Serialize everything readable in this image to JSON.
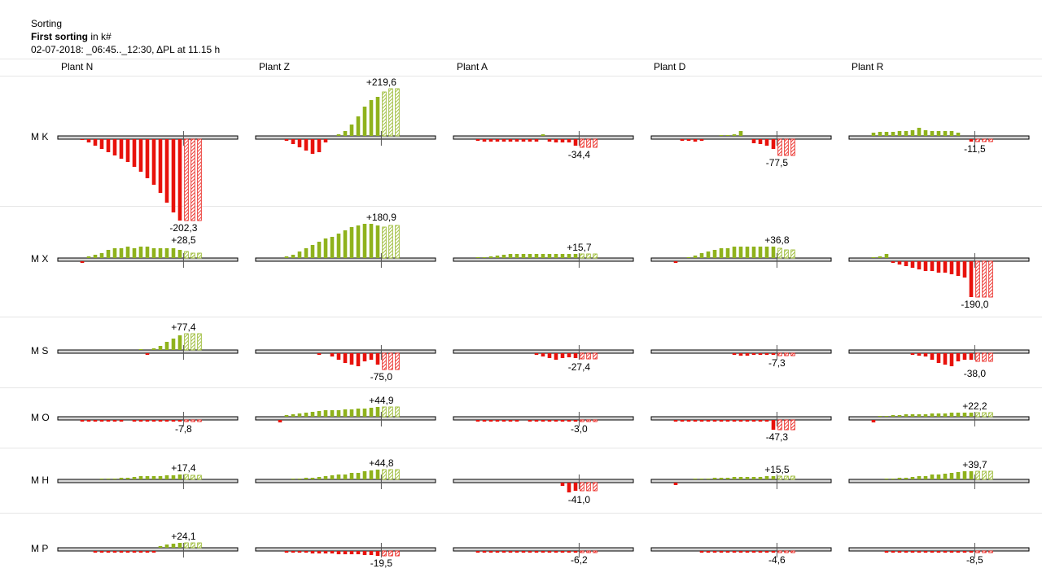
{
  "header": {
    "title": "Sorting",
    "subtitle_bold": "First sorting",
    "subtitle_unit": " in k#",
    "period": "02-07-2018:  _06:45.._12:30,  ΔPL at 11.15 h"
  },
  "colors": {
    "positive": "#8fb21c",
    "negative": "#e8120c",
    "axis_fill": "#d6d6d6",
    "grid": "#e6e6e6"
  },
  "chart_data": {
    "type": "bar",
    "title": "First sorting",
    "columns": [
      "Plant N",
      "Plant Z",
      "Plant A",
      "Plant D",
      "Plant R"
    ],
    "rows": [
      "M K",
      "M X",
      "M S",
      "M O",
      "M H",
      "M P"
    ],
    "marker_time": "11.15 h",
    "note": "Each cell: 17 solid bars (actual) followed by 3 hatched bars (projection); label shows projected value in k#.",
    "cells": [
      [
        {
          "label": "-202,3",
          "values": [
            0,
            -1,
            -4,
            -8,
            -12,
            -16,
            -20,
            -24,
            -28,
            -34,
            -40,
            -48,
            -56,
            -66,
            -78,
            -90,
            -100,
            -100,
            -100,
            -100
          ]
        },
        {
          "label": "+219,6",
          "values": [
            0,
            0,
            -2,
            -6,
            -10,
            -14,
            -18,
            -16,
            -4,
            0,
            2,
            6,
            14,
            24,
            36,
            44,
            48,
            54,
            58,
            58
          ]
        },
        {
          "label": "-34,4",
          "values": [
            0,
            -2,
            -3,
            -3,
            -3,
            -3,
            -3,
            -3,
            -3,
            -3,
            -3,
            2,
            -3,
            -4,
            -4,
            -4,
            -8,
            -10,
            -10,
            -10
          ]
        },
        {
          "label": "-77,5",
          "values": [
            0,
            0,
            -2,
            -2,
            -3,
            -2,
            0,
            0,
            1,
            1,
            2,
            6,
            0,
            -5,
            -6,
            -8,
            -12,
            -20,
            -20,
            -20
          ]
        },
        {
          "label": "-11,5",
          "values": [
            0,
            4,
            5,
            5,
            5,
            6,
            6,
            7,
            10,
            7,
            6,
            6,
            6,
            6,
            4,
            0,
            -3,
            -3,
            -3,
            -3
          ]
        }
      ],
      [
        {
          "label": "+28,5",
          "values": [
            0,
            -2,
            2,
            4,
            6,
            10,
            12,
            12,
            14,
            12,
            14,
            14,
            12,
            12,
            12,
            12,
            10,
            8,
            6,
            6
          ]
        },
        {
          "label": "+180,9",
          "values": [
            0,
            0,
            2,
            4,
            8,
            12,
            16,
            20,
            24,
            26,
            30,
            34,
            38,
            40,
            42,
            42,
            40,
            38,
            40,
            40
          ]
        },
        {
          "label": "+15,7",
          "values": [
            0,
            1,
            1,
            2,
            3,
            4,
            5,
            5,
            5,
            5,
            5,
            5,
            5,
            5,
            5,
            5,
            5,
            5,
            5,
            5
          ]
        },
        {
          "label": "+36,8",
          "values": [
            0,
            -2,
            0,
            1,
            3,
            6,
            8,
            10,
            12,
            12,
            14,
            14,
            14,
            14,
            14,
            14,
            14,
            12,
            10,
            10
          ]
        },
        {
          "label": "-190,0",
          "values": [
            0,
            1,
            2,
            5,
            -2,
            -4,
            -6,
            -8,
            -10,
            -12,
            -12,
            -14,
            -14,
            -16,
            -18,
            -20,
            -44,
            -44,
            -44,
            -44
          ]
        }
      ],
      [
        {
          "label": "+77,4",
          "values": [
            0,
            0,
            0,
            0,
            0,
            0,
            0,
            0,
            0,
            0,
            1,
            -2,
            2,
            5,
            10,
            14,
            18,
            20,
            20,
            20
          ]
        },
        {
          "label": "-75,0",
          "values": [
            0,
            0,
            0,
            0,
            0,
            0,
            0,
            -2,
            0,
            -4,
            -8,
            -12,
            -14,
            -16,
            -10,
            -8,
            -14,
            -20,
            -20,
            -20
          ]
        },
        {
          "label": "-27,4",
          "values": [
            0,
            0,
            0,
            0,
            0,
            0,
            0,
            0,
            0,
            0,
            -2,
            -4,
            -6,
            -8,
            -6,
            -5,
            -6,
            -7,
            -7,
            -7
          ]
        },
        {
          "label": "-7,3",
          "values": [
            0,
            0,
            0,
            0,
            0,
            0,
            0,
            0,
            0,
            0,
            -2,
            -3,
            -3,
            -2,
            -2,
            -2,
            -2,
            -3,
            -3,
            -3
          ]
        },
        {
          "label": "-38,0",
          "values": [
            0,
            0,
            0,
            0,
            0,
            0,
            0,
            -2,
            -3,
            -4,
            -8,
            -12,
            -14,
            -16,
            -10,
            -8,
            -8,
            -10,
            -10,
            -10
          ]
        }
      ],
      [
        {
          "label": "-7,8",
          "values": [
            0,
            -2,
            -2,
            -2,
            -2,
            -2,
            -2,
            -2,
            0,
            -2,
            -2,
            -2,
            -2,
            -2,
            -2,
            -2,
            -2,
            -2,
            -2,
            -2
          ]
        },
        {
          "label": "+44,9",
          "values": [
            0,
            -3,
            2,
            3,
            4,
            5,
            6,
            7,
            8,
            8,
            8,
            9,
            9,
            10,
            10,
            11,
            12,
            12,
            12,
            12
          ]
        },
        {
          "label": "-3,0",
          "values": [
            0,
            -2,
            -2,
            -2,
            -2,
            -2,
            -2,
            -2,
            0,
            -2,
            -2,
            -2,
            -2,
            -2,
            -2,
            -2,
            -2,
            -2,
            -2,
            -2
          ]
        },
        {
          "label": "-47,3",
          "values": [
            0,
            -2,
            -2,
            -2,
            -2,
            -2,
            -2,
            -2,
            -2,
            -2,
            -2,
            -2,
            -2,
            -2,
            -2,
            -2,
            -12,
            -12,
            -12,
            -12
          ]
        },
        {
          "label": "+22,2",
          "values": [
            0,
            -3,
            1,
            1,
            2,
            2,
            3,
            3,
            3,
            3,
            4,
            4,
            4,
            5,
            5,
            5,
            5,
            5,
            5,
            5
          ]
        }
      ],
      [
        {
          "label": "+17,4",
          "values": [
            0,
            0,
            0,
            0,
            1,
            1,
            1,
            2,
            2,
            3,
            4,
            4,
            4,
            4,
            5,
            5,
            6,
            6,
            5,
            5
          ]
        },
        {
          "label": "+44,8",
          "values": [
            0,
            0,
            0,
            1,
            1,
            2,
            2,
            3,
            4,
            5,
            6,
            6,
            8,
            8,
            10,
            11,
            12,
            12,
            12,
            12
          ]
        },
        {
          "label": "-41,0",
          "values": [
            0,
            0,
            0,
            0,
            0,
            0,
            0,
            0,
            0,
            0,
            0,
            0,
            0,
            0,
            -4,
            -12,
            -10,
            -10,
            -10,
            -10
          ]
        },
        {
          "label": "+15,5",
          "values": [
            0,
            -3,
            0,
            0,
            1,
            1,
            1,
            2,
            2,
            2,
            3,
            3,
            3,
            3,
            3,
            4,
            4,
            4,
            4,
            4
          ]
        },
        {
          "label": "+39,7",
          "values": [
            0,
            0,
            0,
            1,
            1,
            2,
            2,
            3,
            4,
            4,
            6,
            6,
            7,
            8,
            9,
            10,
            10,
            10,
            10,
            10
          ]
        }
      ],
      [
        {
          "label": "+24,1",
          "values": [
            0,
            0,
            0,
            -2,
            -2,
            -2,
            -2,
            -2,
            -2,
            -2,
            -2,
            -2,
            -2,
            2,
            4,
            5,
            6,
            6,
            6,
            6
          ]
        },
        {
          "label": "-19,5",
          "values": [
            0,
            0,
            -2,
            -2,
            -2,
            -2,
            -3,
            -3,
            -3,
            -3,
            -4,
            -4,
            -4,
            -4,
            -5,
            -5,
            -6,
            -6,
            -6,
            -6
          ]
        },
        {
          "label": "-6,2",
          "values": [
            0,
            -2,
            -2,
            -2,
            -2,
            -2,
            -2,
            -2,
            -2,
            -2,
            -2,
            -2,
            -2,
            -2,
            -2,
            -2,
            -2,
            -2,
            -2,
            -2
          ]
        },
        {
          "label": "-4,6",
          "values": [
            0,
            0,
            0,
            0,
            0,
            -2,
            -2,
            -2,
            -2,
            -2,
            -2,
            -2,
            -2,
            -2,
            -2,
            -2,
            -2,
            -2,
            -2,
            -2
          ]
        },
        {
          "label": "-8,5",
          "values": [
            0,
            0,
            0,
            -2,
            -2,
            -2,
            -2,
            -2,
            -2,
            -2,
            -2,
            -2,
            -2,
            -2,
            -2,
            -2,
            -2,
            -2,
            -2,
            -2
          ]
        }
      ]
    ]
  }
}
